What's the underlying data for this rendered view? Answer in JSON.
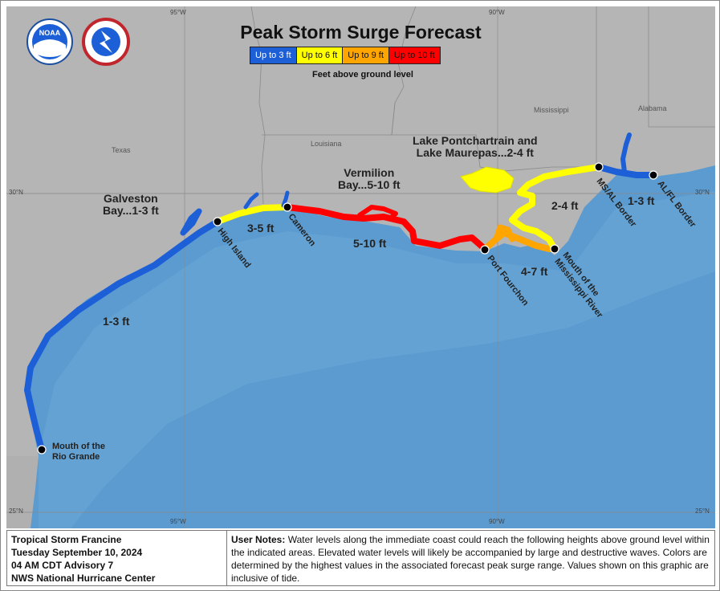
{
  "title": "Peak Storm Surge Forecast",
  "legend": {
    "items": [
      {
        "label": "Up to 3 ft",
        "color": "#1c5fd6",
        "text_color": "#ffffff"
      },
      {
        "label": "Up to 6 ft",
        "color": "#ffff00",
        "text_color": "#111111"
      },
      {
        "label": "Up to 9 ft",
        "color": "#ffa500",
        "text_color": "#111111"
      },
      {
        "label": "Up to 10 ft",
        "color": "#ff0000",
        "text_color": "#111111"
      }
    ],
    "subtitle": "Feet above ground level"
  },
  "logos": {
    "noaa": "NOAA",
    "nws": "NATIONAL WEATHER SERVICE"
  },
  "states": {
    "texas": "Texas",
    "louisiana": "Louisiana",
    "mississippi": "Mississippi",
    "alabama": "Alabama"
  },
  "coords": {
    "lon95_top": "95°W",
    "lon90_top": "90°W",
    "lon95_bottom": "95°W",
    "lon90_bottom": "90°W",
    "lat30_left": "30°N",
    "lat30_right": "30°N",
    "lat25_left": "25°N",
    "lat25_right": "25°N"
  },
  "areas": {
    "galveston_line1": "Galveston",
    "galveston_line2": "Bay...1-3 ft",
    "vermilion_line1": "Vermilion",
    "vermilion_line2": "Bay...5-10 ft",
    "pontchartrain_line1": "Lake Pontchartrain and",
    "pontchartrain_line2": "Lake Maurepas...2-4 ft"
  },
  "ranges": {
    "texas_south": "1-3 ft",
    "high_island_cameron": "3-5 ft",
    "cameron_fourchon": "5-10 ft",
    "fourchon_mouth": "4-7 ft",
    "mouth_msal": "2-4 ft",
    "msal_alfl": "1-3 ft"
  },
  "points": {
    "rio_grande_line1": "Mouth of the",
    "rio_grande_line2": "Rio Grande",
    "high_island": "High Island",
    "cameron": "Cameron",
    "port_fourchon": "Port Fourchon",
    "mississippi_line1": "Mouth of the",
    "mississippi_line2": "Mississippi River",
    "ms_al": "MS/AL Border",
    "al_fl": "AL/FL Border"
  },
  "info": {
    "storm": "Tropical Storm Francine",
    "date": "Tuesday September 10, 2024",
    "advisory": "04 AM CDT Advisory 7",
    "agency": "NWS National Hurricane Center"
  },
  "notes": {
    "label": "User Notes:",
    "text": "Water levels along the immediate coast could reach the following heights above ground level within the indicated areas. Elevated water levels will likely be accompanied by large and destructive waves. Colors are determined by the highest values in the associated forecast peak surge range. Values shown on this graphic are inclusive of tide."
  }
}
